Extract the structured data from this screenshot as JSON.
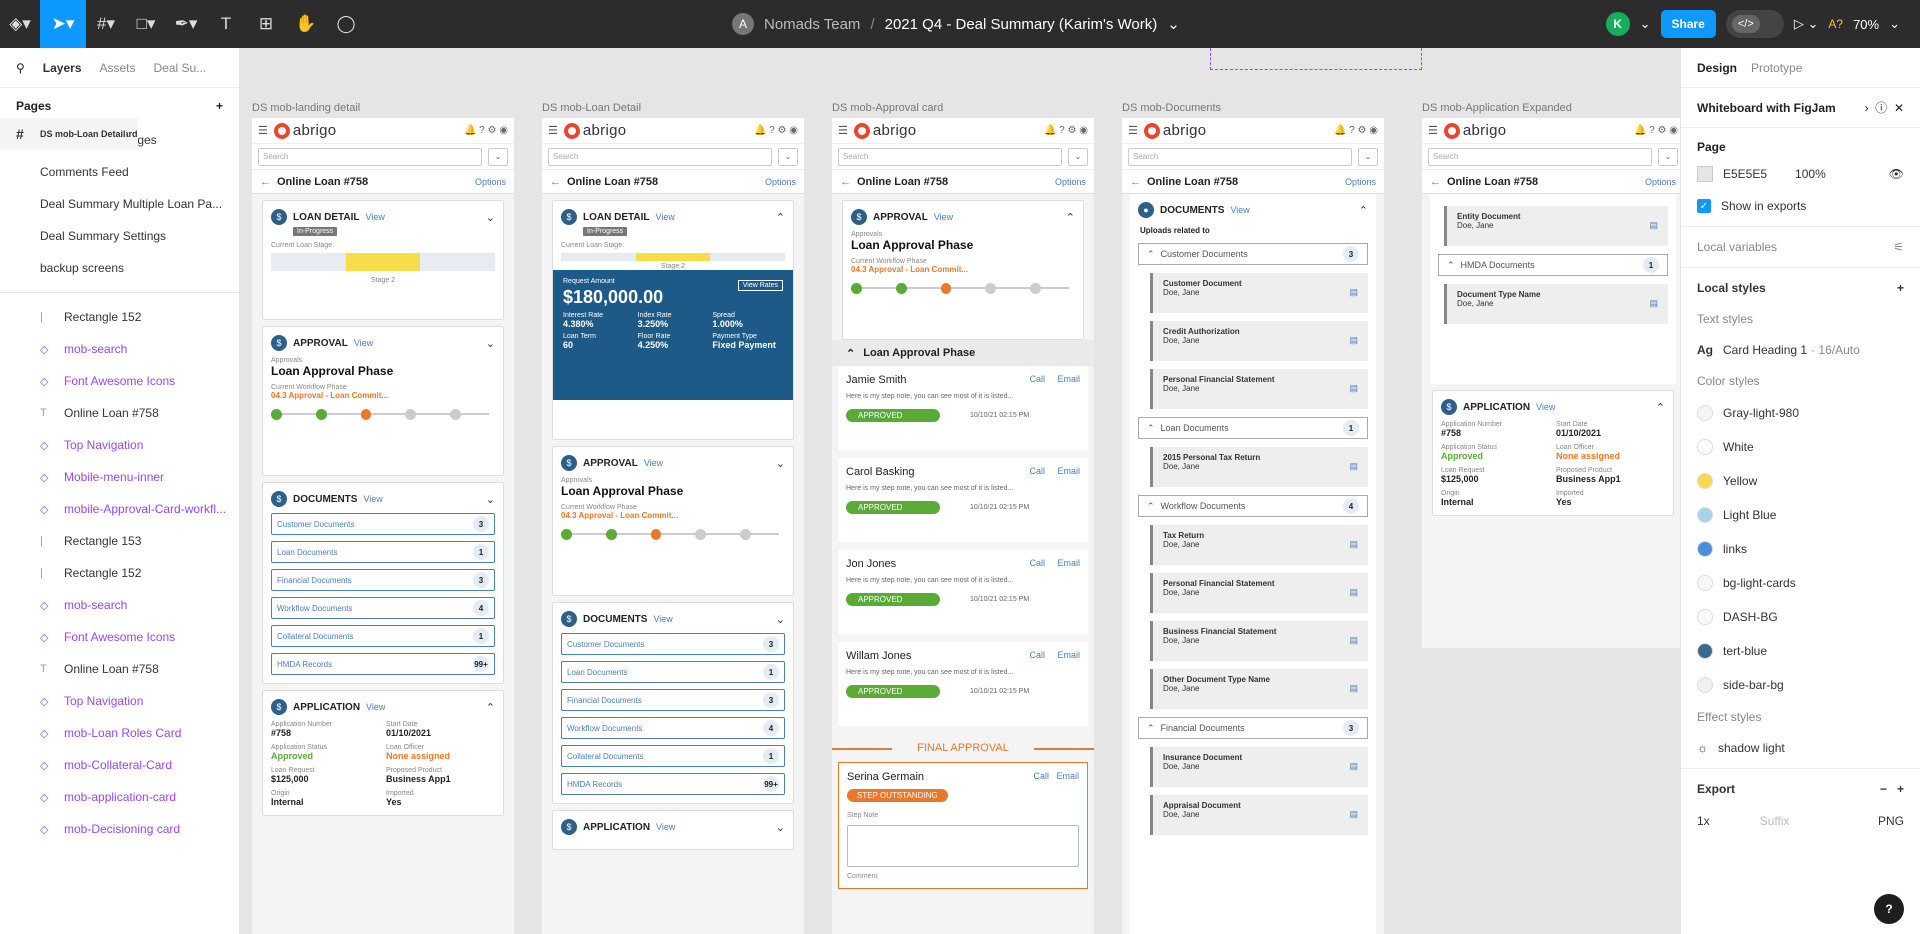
{
  "toolbar": {
    "team": "Nomads Team",
    "file_name": "2021 Q4 - Deal Summary (Karim's Work)",
    "avatar_letter": "A",
    "user_initial": "K",
    "share": "Share",
    "zoom": "70%"
  },
  "left_panel": {
    "tabs": [
      "Layers",
      "Assets",
      "Deal Su..."
    ],
    "pages_title": "Pages",
    "pages": [
      "Deal Summary Pages",
      "Comments Feed",
      "Deal Summary Multiple Loan Pa...",
      "Deal Summary Settings",
      "backup screens"
    ],
    "layers": [
      {
        "kind": "frame",
        "label": "DS mob-Documents"
      },
      {
        "kind": "rect",
        "label": "Rectangle 152"
      },
      {
        "kind": "comp",
        "label": "mob-search"
      },
      {
        "kind": "comp",
        "label": "Font Awesome Icons"
      },
      {
        "kind": "text",
        "label": "Online Loan #758"
      },
      {
        "kind": "comp",
        "label": "Top Navigation"
      },
      {
        "kind": "frame",
        "label": "DS mob-Approval card"
      },
      {
        "kind": "comp",
        "label": "Mobile-menu-inner"
      },
      {
        "kind": "comp",
        "label": "mobile-Approval-Card-workfl..."
      },
      {
        "kind": "rect",
        "label": "Rectangle 153"
      },
      {
        "kind": "rect",
        "label": "Rectangle 152"
      },
      {
        "kind": "comp",
        "label": "mob-search"
      },
      {
        "kind": "comp",
        "label": "Font Awesome Icons"
      },
      {
        "kind": "text",
        "label": "Online Loan #758"
      },
      {
        "kind": "comp",
        "label": "Top Navigation"
      },
      {
        "kind": "frame",
        "label": "DS mob-Loan Detail"
      },
      {
        "kind": "comp",
        "label": "mob-Loan Roles Card"
      },
      {
        "kind": "comp",
        "label": "mob-Collateral-Card"
      },
      {
        "kind": "comp",
        "label": "mob-application-card"
      },
      {
        "kind": "comp",
        "label": "mob-Decisioning card"
      }
    ]
  },
  "frames": {
    "labels": [
      "DS mob-landing detail",
      "DS mob-Loan Detail",
      "DS mob-Approval card",
      "DS mob-Documents",
      "DS mob-Application Expanded"
    ],
    "common": {
      "logo": "abrigo",
      "search": "Search",
      "loan": "Online Loan #758",
      "options": "Options",
      "view": "View"
    },
    "loan_detail": {
      "title": "LOAN DETAIL",
      "status": "In-Progress",
      "stage_label": "Current Loan Stage:",
      "stage": "Stage 2"
    },
    "approval": {
      "title": "APPROVAL",
      "approvals": "Approvals",
      "phase": "Loan Approval Phase",
      "wf_label": "Current Workflow Phase",
      "wf": "04.3 Approval - Loan Commit..."
    },
    "documents": {
      "title": "DOCUMENTS",
      "rows": [
        {
          "l": "Customer Documents",
          "c": "3"
        },
        {
          "l": "Loan Documents",
          "c": "1"
        },
        {
          "l": "Financial Documents",
          "c": "3"
        },
        {
          "l": "Workflow Documents",
          "c": "4"
        },
        {
          "l": "Collateral Documents",
          "c": "1"
        },
        {
          "l": "HMDA Records",
          "c": "99+"
        }
      ]
    },
    "application": {
      "title": "APPLICATION",
      "num_l": "Application Number",
      "num": "#758",
      "start_l": "Start Date",
      "start": "01/10/2021",
      "status_l": "Application Status",
      "status": "Approved",
      "officer_l": "Loan Officer",
      "officer": "None assigned",
      "req_l": "Loan Request",
      "req": "$125,000",
      "prod_l": "Proposed Product",
      "prod": "Business App1",
      "origin_l": "Origin",
      "origin": "Internal",
      "imp_l": "Imported",
      "imp": "Yes"
    },
    "request": {
      "label": "Request Amount",
      "amount": "$180,000.00",
      "rates": "View Rates",
      "ir_l": "Interest Rate",
      "ir": "4.380%",
      "idx_l": "Index Rate",
      "idx": "3.250%",
      "sp_l": "Spread",
      "sp": "1.000%",
      "term_l": "Loan Term",
      "term": "60",
      "floor_l": "Floor Rate",
      "floor": "4.250%",
      "pay_l": "Payment Type",
      "pay": "Fixed Payment"
    },
    "approvers": {
      "phase": "Loan Approval Phase",
      "call": "Call",
      "email": "Email",
      "note": "Here is my step note, you can see most of it is listed...",
      "approved": "APPROVED",
      "time": "10/10/21 02:15 PM",
      "people": [
        "Jamie Smith",
        "Carol Basking",
        "Jon Jones",
        "Willam Jones"
      ],
      "final": "FINAL APPROVAL",
      "outstanding_name": "Serina Germain",
      "outstanding": "STEP OUTSTANDING",
      "step_note": "Step Note",
      "comment": "Comment"
    },
    "docs_frame": {
      "uploads": "Uploads related to",
      "owner": "Doe, Jane",
      "sections": [
        {
          "name": "Customer Documents",
          "count": "3",
          "docs": [
            "Customer Document",
            "Credit Authorization",
            "Personal Financial Statement"
          ]
        },
        {
          "name": "Loan Documents",
          "count": "1",
          "docs": [
            "2015 Personal Tax Return"
          ]
        },
        {
          "name": "Workflow Documents",
          "count": "4",
          "docs": [
            "Tax Return",
            "Personal Financial Statement",
            "Business Financial Statement",
            "Other Document Type Name"
          ]
        },
        {
          "name": "Financial Documents",
          "count": "3",
          "docs": [
            "Insurance Document",
            "Appraisal Document"
          ]
        }
      ]
    },
    "app_expanded": {
      "entity": "Entity Document",
      "hmda": "HMDA Documents",
      "hmda_count": "1",
      "doctype": "Document Type Name"
    }
  },
  "right_panel": {
    "tabs": [
      "Design",
      "Prototype"
    ],
    "whiteboard": "Whiteboard with FigJam",
    "page": "Page",
    "page_color": "E5E5E5",
    "opacity": "100%",
    "show_exports": "Show in exports",
    "local_vars": "Local variables",
    "local_styles": "Local styles",
    "text_styles": "Text styles",
    "text_style_name": "Card Heading 1",
    "text_style_meta": "· 16/Auto",
    "color_styles": "Color styles",
    "colors": [
      {
        "n": "Gray-light-980",
        "c": "#f5f5f5"
      },
      {
        "n": "White",
        "c": "#ffffff"
      },
      {
        "n": "Yellow",
        "c": "#f7d94c"
      },
      {
        "n": "Light Blue",
        "c": "#a8d4ea"
      },
      {
        "n": "links",
        "c": "#4a90d9"
      },
      {
        "n": "bg-light-cards",
        "c": "#f7f7f7"
      },
      {
        "n": "DASH-BG",
        "c": "#f9f9f9"
      },
      {
        "n": "tert-blue",
        "c": "#3b6a8f"
      },
      {
        "n": "side-bar-bg",
        "c": "#f0f0f0"
      }
    ],
    "effect_styles": "Effect styles",
    "shadow": "shadow light",
    "export": "Export",
    "scale": "1x",
    "suffix": "Suffix",
    "format": "PNG"
  }
}
